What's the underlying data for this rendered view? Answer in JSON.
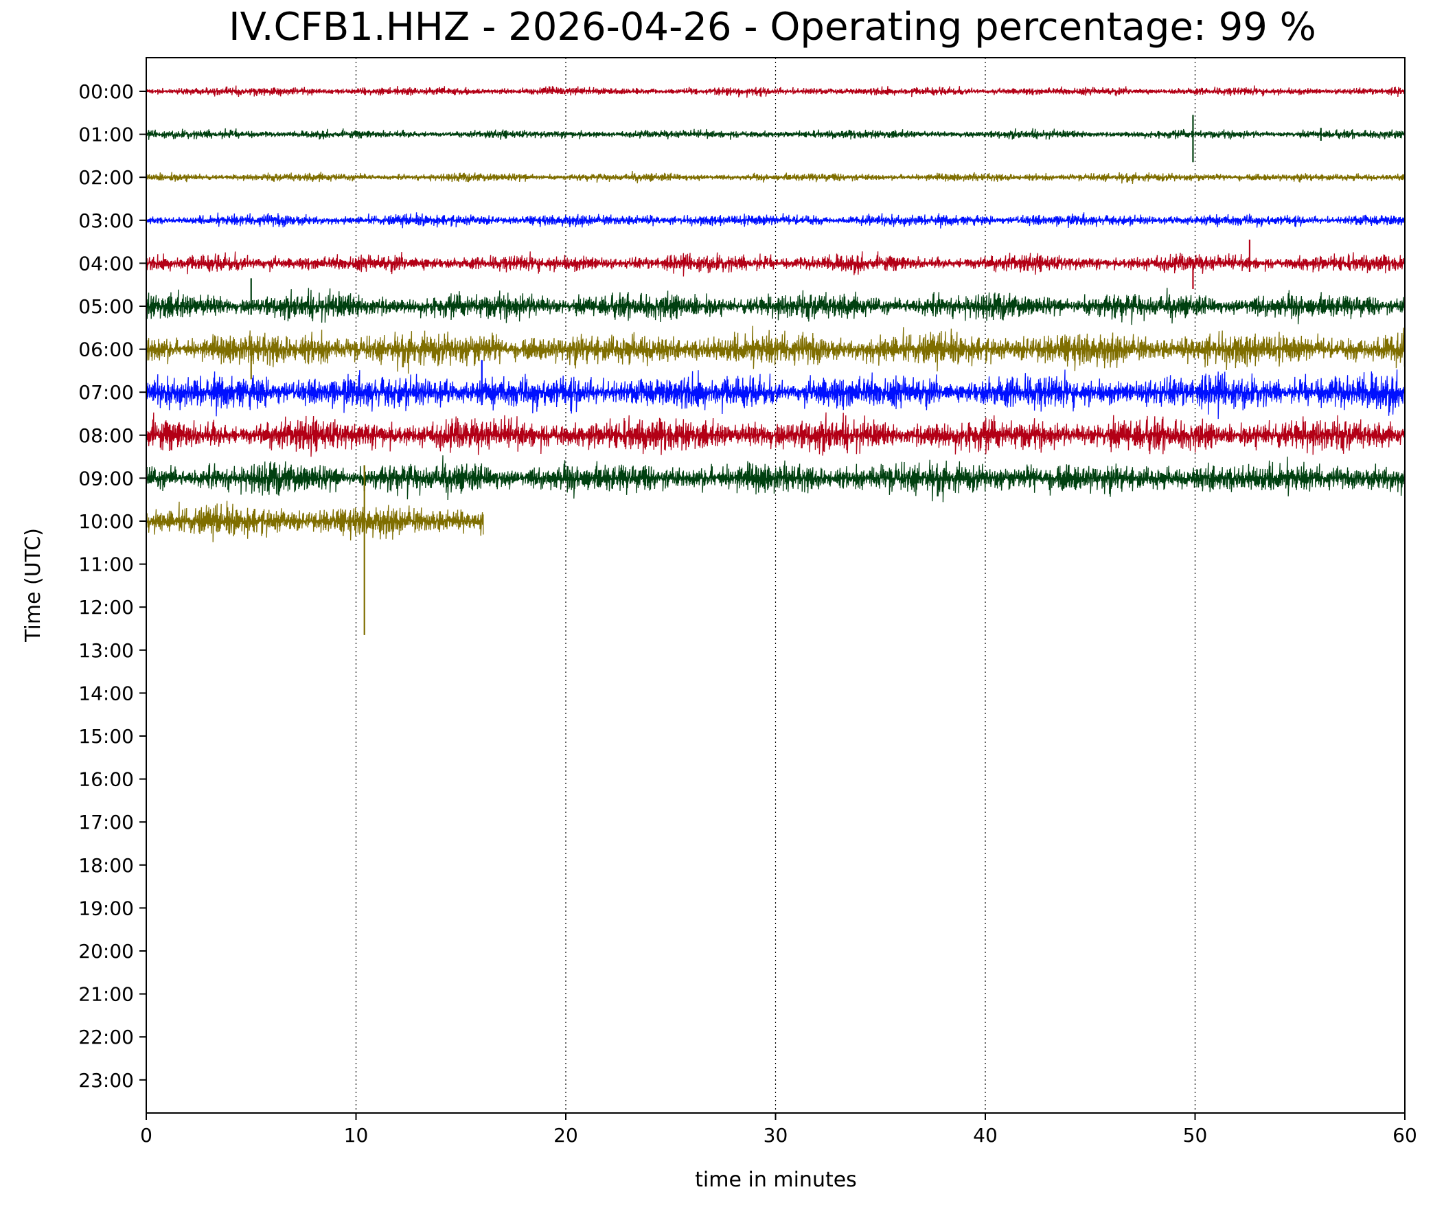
{
  "chart_data": {
    "type": "line",
    "title": "IV.CFB1.HHZ - 2026-04-26 - Operating percentage: 99 %",
    "xlabel": "time in minutes",
    "ylabel": "Time (UTC)",
    "xlim": [
      0,
      60
    ],
    "x_ticks": [
      "0",
      "10",
      "20",
      "30",
      "40",
      "50",
      "60"
    ],
    "grid": "vertical dotted lines at 10, 20, 30, 40, 50",
    "y_ticks": [
      "00:00",
      "01:00",
      "02:00",
      "03:00",
      "04:00",
      "05:00",
      "06:00",
      "07:00",
      "08:00",
      "09:00",
      "10:00",
      "11:00",
      "12:00",
      "13:00",
      "14:00",
      "15:00",
      "16:00",
      "17:00",
      "18:00",
      "19:00",
      "20:00",
      "21:00",
      "22:00",
      "23:00"
    ],
    "trace_colors": [
      "#b30016",
      "#004010",
      "#7f6e00",
      "#0010ff"
    ],
    "series": [
      {
        "hour": "00:00",
        "x_start": 0,
        "x_end": 60,
        "amplitude": 0.1,
        "spikes": []
      },
      {
        "hour": "01:00",
        "x_start": 0,
        "x_end": 60,
        "amplitude": 0.1,
        "spikes": [
          {
            "x": 49.9,
            "up": 0.45,
            "down": 0.65
          },
          {
            "x": 56.0,
            "up": 0.15,
            "down": 0.15
          }
        ]
      },
      {
        "hour": "02:00",
        "x_start": 0,
        "x_end": 60,
        "amplitude": 0.1,
        "spikes": []
      },
      {
        "hour": "03:00",
        "x_start": 0,
        "x_end": 60,
        "amplitude": 0.14,
        "spikes": []
      },
      {
        "hour": "04:00",
        "x_start": 0,
        "x_end": 60,
        "amplitude": 0.2,
        "spikes": [
          {
            "x": 52.6,
            "up": 0.55,
            "down": 0.2
          },
          {
            "x": 49.9,
            "up": 0.1,
            "down": 0.6
          }
        ]
      },
      {
        "hour": "05:00",
        "x_start": 0,
        "x_end": 60,
        "amplitude": 0.3,
        "spikes": [
          {
            "x": 5.0,
            "up": 0.65,
            "down": 0.2
          }
        ]
      },
      {
        "hour": "06:00",
        "x_start": 0,
        "x_end": 60,
        "amplitude": 0.38,
        "spikes": [
          {
            "x": 5.0,
            "up": 0.2,
            "down": 0.7
          }
        ]
      },
      {
        "hour": "07:00",
        "x_start": 0,
        "x_end": 60,
        "amplitude": 0.4,
        "spikes": [
          {
            "x": 16.0,
            "up": 0.75,
            "down": 0.3
          }
        ]
      },
      {
        "hour": "08:00",
        "x_start": 0,
        "x_end": 60,
        "amplitude": 0.38,
        "spikes": []
      },
      {
        "hour": "09:00",
        "x_start": 0,
        "x_end": 60,
        "amplitude": 0.36,
        "spikes": [
          {
            "x": 10.4,
            "up": 0.3,
            "down": 0.3
          }
        ]
      },
      {
        "hour": "10:00",
        "x_start": 0,
        "x_end": 16.1,
        "amplitude": 0.36,
        "spikes": [
          {
            "x": 10.4,
            "up": 1.3,
            "down": 2.65
          }
        ]
      }
    ]
  }
}
